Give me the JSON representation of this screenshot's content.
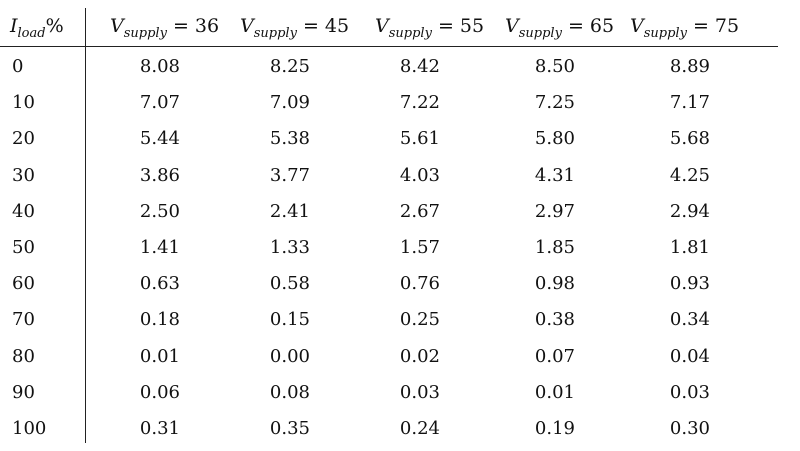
{
  "table": {
    "header": {
      "load": {
        "var": "I",
        "sub": "load",
        "rest": "%"
      },
      "supply_cols": [
        {
          "var": "V",
          "sub": "supply",
          "rest": " = 36"
        },
        {
          "var": "V",
          "sub": "supply",
          "rest": " = 45"
        },
        {
          "var": "V",
          "sub": "supply",
          "rest": " = 55"
        },
        {
          "var": "V",
          "sub": "supply",
          "rest": " = 65"
        },
        {
          "var": "V",
          "sub": "supply",
          "rest": " = 75"
        }
      ]
    },
    "rows": [
      {
        "load": "0",
        "values": [
          "8.08",
          "8.25",
          "8.42",
          "8.50",
          "8.89"
        ]
      },
      {
        "load": "10",
        "values": [
          "7.07",
          "7.09",
          "7.22",
          "7.25",
          "7.17"
        ]
      },
      {
        "load": "20",
        "values": [
          "5.44",
          "5.38",
          "5.61",
          "5.80",
          "5.68"
        ]
      },
      {
        "load": "30",
        "values": [
          "3.86",
          "3.77",
          "4.03",
          "4.31",
          "4.25"
        ]
      },
      {
        "load": "40",
        "values": [
          "2.50",
          "2.41",
          "2.67",
          "2.97",
          "2.94"
        ]
      },
      {
        "load": "50",
        "values": [
          "1.41",
          "1.33",
          "1.57",
          "1.85",
          "1.81"
        ]
      },
      {
        "load": "60",
        "values": [
          "0.63",
          "0.58",
          "0.76",
          "0.98",
          "0.93"
        ]
      },
      {
        "load": "70",
        "values": [
          "0.18",
          "0.15",
          "0.25",
          "0.38",
          "0.34"
        ]
      },
      {
        "load": "80",
        "values": [
          "0.01",
          "0.00",
          "0.02",
          "0.07",
          "0.04"
        ]
      },
      {
        "load": "90",
        "values": [
          "0.06",
          "0.08",
          "0.03",
          "0.01",
          "0.03"
        ]
      },
      {
        "load": "100",
        "values": [
          "0.31",
          "0.35",
          "0.24",
          "0.19",
          "0.30"
        ]
      }
    ]
  }
}
